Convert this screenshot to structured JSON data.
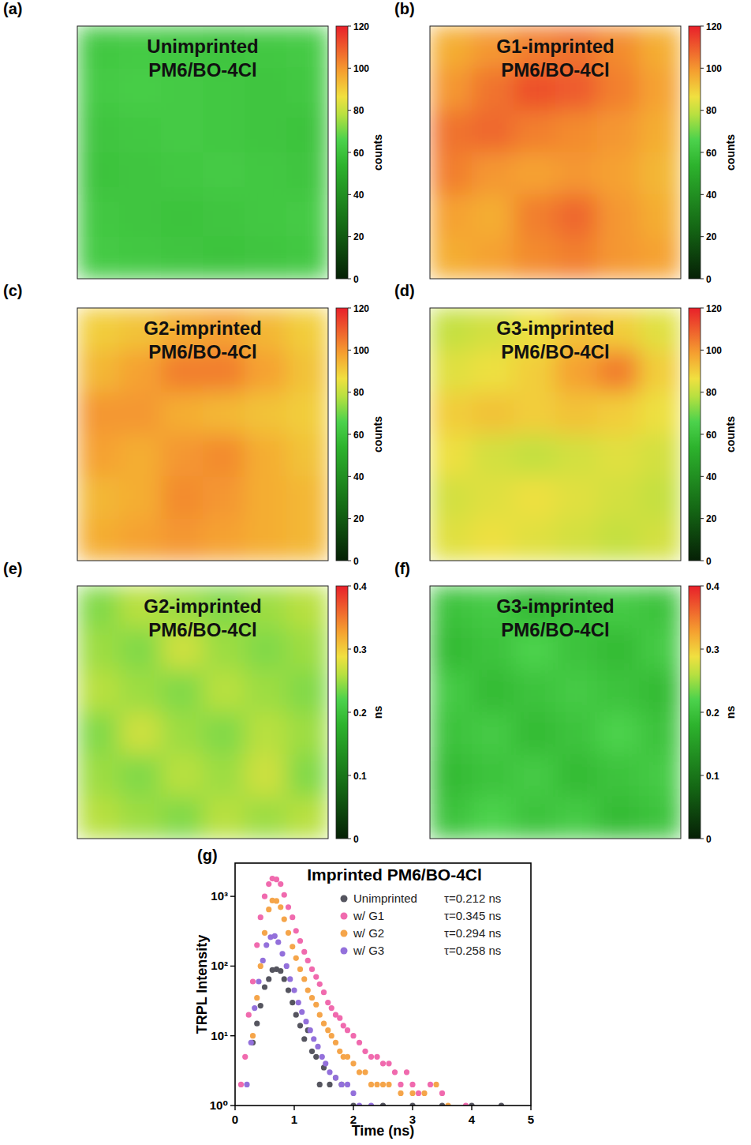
{
  "chart_data": [
    {
      "type": "heatmap",
      "panel": "(a)",
      "title_lines": [
        "Unimprinted",
        "PM6/BO-4Cl"
      ],
      "cells": [
        [
          62,
          63,
          62,
          61,
          62,
          63
        ],
        [
          63,
          64,
          63,
          62,
          61,
          62
        ],
        [
          61,
          62,
          63,
          62,
          61,
          60
        ],
        [
          60,
          61,
          62,
          63,
          62,
          61
        ],
        [
          62,
          61,
          60,
          61,
          62,
          63
        ],
        [
          63,
          62,
          61,
          60,
          61,
          62
        ]
      ],
      "colorbar": {
        "range": [
          0,
          120
        ],
        "ticks": [
          0,
          20,
          40,
          60,
          80,
          100,
          120
        ],
        "label": "counts"
      }
    },
    {
      "type": "heatmap",
      "panel": "(b)",
      "title_lines": [
        "G1-imprinted",
        "PM6/BO-4Cl"
      ],
      "cells": [
        [
          96,
          100,
          104,
          106,
          102,
          96
        ],
        [
          100,
          106,
          112,
          110,
          104,
          98
        ],
        [
          106,
          108,
          104,
          102,
          100,
          96
        ],
        [
          104,
          100,
          98,
          100,
          98,
          94
        ],
        [
          98,
          96,
          104,
          108,
          100,
          96
        ],
        [
          96,
          98,
          102,
          104,
          100,
          98
        ]
      ],
      "colorbar": {
        "range": [
          0,
          120
        ],
        "ticks": [
          0,
          20,
          40,
          60,
          80,
          100,
          120
        ],
        "label": "counts"
      }
    },
    {
      "type": "heatmap",
      "panel": "(c)",
      "title_lines": [
        "G2-imprinted",
        "PM6/BO-4Cl"
      ],
      "cells": [
        [
          90,
          92,
          96,
          98,
          94,
          90
        ],
        [
          94,
          98,
          104,
          104,
          98,
          92
        ],
        [
          100,
          100,
          96,
          94,
          92,
          90
        ],
        [
          98,
          96,
          100,
          102,
          96,
          92
        ],
        [
          94,
          96,
          102,
          100,
          96,
          94
        ],
        [
          96,
          98,
          100,
          98,
          96,
          94
        ]
      ],
      "colorbar": {
        "range": [
          0,
          120
        ],
        "ticks": [
          0,
          20,
          40,
          60,
          80,
          100,
          120
        ],
        "label": "counts"
      }
    },
    {
      "type": "heatmap",
      "panel": "(d)",
      "title_lines": [
        "G3-imprinted",
        "PM6/BO-4Cl"
      ],
      "cells": [
        [
          80,
          82,
          86,
          92,
          90,
          84
        ],
        [
          84,
          86,
          90,
          98,
          104,
          90
        ],
        [
          90,
          92,
          90,
          92,
          90,
          86
        ],
        [
          86,
          82,
          80,
          82,
          84,
          82
        ],
        [
          82,
          84,
          86,
          84,
          82,
          80
        ],
        [
          84,
          86,
          84,
          82,
          80,
          82
        ]
      ],
      "colorbar": {
        "range": [
          0,
          120
        ],
        "ticks": [
          0,
          20,
          40,
          60,
          80,
          100,
          120
        ],
        "label": "counts"
      }
    },
    {
      "type": "heatmap",
      "panel": "(e)",
      "title_lines": [
        "G2-imprinted",
        "PM6/BO-4Cl"
      ],
      "cells": [
        [
          0.24,
          0.26,
          0.25,
          0.24,
          0.25,
          0.26
        ],
        [
          0.25,
          0.24,
          0.27,
          0.25,
          0.24,
          0.25
        ],
        [
          0.26,
          0.25,
          0.24,
          0.26,
          0.25,
          0.24
        ],
        [
          0.24,
          0.27,
          0.25,
          0.24,
          0.26,
          0.25
        ],
        [
          0.25,
          0.24,
          0.26,
          0.25,
          0.27,
          0.24
        ],
        [
          0.26,
          0.25,
          0.24,
          0.26,
          0.25,
          0.26
        ]
      ],
      "colorbar": {
        "range": [
          0,
          0.4
        ],
        "ticks": [
          0,
          0.1,
          0.2,
          0.3,
          0.4
        ],
        "label": "ns"
      }
    },
    {
      "type": "heatmap",
      "panel": "(f)",
      "title_lines": [
        "G3-imprinted",
        "PM6/BO-4Cl"
      ],
      "cells": [
        [
          0.2,
          0.21,
          0.19,
          0.2,
          0.21,
          0.2
        ],
        [
          0.19,
          0.2,
          0.22,
          0.2,
          0.19,
          0.21
        ],
        [
          0.21,
          0.19,
          0.2,
          0.21,
          0.2,
          0.19
        ],
        [
          0.2,
          0.21,
          0.19,
          0.2,
          0.22,
          0.2
        ],
        [
          0.19,
          0.2,
          0.21,
          0.19,
          0.2,
          0.21
        ],
        [
          0.2,
          0.22,
          0.2,
          0.21,
          0.19,
          0.2
        ]
      ],
      "colorbar": {
        "range": [
          0,
          0.4
        ],
        "ticks": [
          0,
          0.1,
          0.2,
          0.3,
          0.4
        ],
        "label": "ns"
      }
    },
    {
      "type": "scatter",
      "panel": "(g)",
      "title": "Imprinted PM6/BO-4Cl",
      "x_label": "Time (ns)",
      "y_label": "TRPL Intensity",
      "xlim": [
        0,
        5
      ],
      "xticks": [
        0,
        1,
        2,
        3,
        4,
        5
      ],
      "ylim": [
        1,
        3000
      ],
      "log": "y",
      "yticks": [
        {
          "value": 1,
          "label": "10⁰"
        },
        {
          "value": 10,
          "label": "10¹"
        },
        {
          "value": 100,
          "label": "10²"
        },
        {
          "value": 1000,
          "label": "10³"
        }
      ],
      "legend": "top-right",
      "series": [
        {
          "name": "Unimprinted",
          "annotation": "τ=0.212 ns",
          "color": "#55555f",
          "marker": "circle",
          "x": [
            0.3,
            0.37,
            0.43,
            0.5,
            0.57,
            0.63,
            0.7,
            0.77,
            0.83,
            0.9,
            0.97,
            1.03,
            1.1,
            1.17,
            1.23,
            1.3,
            1.37,
            1.43,
            1.5,
            1.6,
            1.7,
            1.8,
            2.0,
            2.5,
            3.0,
            3.5,
            4.0,
            4.5
          ],
          "values": [
            8,
            15,
            27,
            50,
            65,
            88,
            90,
            85,
            65,
            45,
            30,
            20,
            14,
            9,
            12,
            6,
            5,
            2,
            3.5,
            2,
            2.5,
            2,
            1,
            1,
            1,
            1,
            1,
            1
          ]
        },
        {
          "name": "w/ G1",
          "annotation": "τ=0.345 ns",
          "color": "#f06aae",
          "marker": "circle",
          "x": [
            0.1,
            0.17,
            0.23,
            0.3,
            0.37,
            0.43,
            0.5,
            0.57,
            0.63,
            0.7,
            0.77,
            0.83,
            0.9,
            0.97,
            1.03,
            1.1,
            1.17,
            1.23,
            1.3,
            1.37,
            1.43,
            1.5,
            1.57,
            1.63,
            1.7,
            1.77,
            1.83,
            1.9,
            2.0,
            2.1,
            2.2,
            2.3,
            2.4,
            2.5,
            2.6,
            2.7,
            2.8,
            2.9,
            3.0,
            3.1,
            3.3,
            3.5,
            3.9
          ],
          "values": [
            2,
            5,
            20,
            60,
            200,
            500,
            1000,
            1500,
            1800,
            1750,
            1500,
            1050,
            700,
            500,
            320,
            230,
            160,
            120,
            90,
            70,
            55,
            42,
            30,
            25,
            20,
            18,
            14,
            12,
            10,
            8,
            6,
            5,
            5,
            4,
            4,
            3,
            2,
            3,
            2,
            1.5,
            2,
            1.5,
            1
          ]
        },
        {
          "name": "w/ G2",
          "annotation": "τ=0.294 ns",
          "color": "#f5a54a",
          "marker": "circle",
          "x": [
            0.3,
            0.37,
            0.43,
            0.5,
            0.57,
            0.63,
            0.7,
            0.77,
            0.83,
            0.9,
            0.97,
            1.03,
            1.1,
            1.17,
            1.23,
            1.3,
            1.37,
            1.43,
            1.5,
            1.57,
            1.63,
            1.7,
            1.77,
            1.83,
            1.9,
            2.0,
            2.1,
            2.2,
            2.3,
            2.4,
            2.5,
            2.6,
            2.8,
            3.0,
            3.2,
            3.4,
            3.6
          ],
          "values": [
            10,
            35,
            100,
            300,
            650,
            870,
            860,
            700,
            470,
            300,
            190,
            130,
            90,
            65,
            45,
            35,
            28,
            20,
            15,
            12,
            10,
            8,
            6,
            5,
            5,
            4,
            3,
            3,
            2,
            2,
            2,
            2,
            1.5,
            1.5,
            1.5,
            2,
            1
          ]
        },
        {
          "name": "w/ G3",
          "annotation": "τ=0.258 ns",
          "color": "#9370db",
          "marker": "circle",
          "x": [
            0.2,
            0.27,
            0.33,
            0.4,
            0.47,
            0.53,
            0.6,
            0.67,
            0.73,
            0.8,
            0.87,
            0.93,
            1.0,
            1.07,
            1.13,
            1.2,
            1.27,
            1.33,
            1.4,
            1.47,
            1.53,
            1.6,
            1.7,
            1.8,
            1.9,
            2.0,
            2.1,
            2.3
          ],
          "values": [
            2,
            8,
            25,
            60,
            120,
            200,
            260,
            270,
            220,
            150,
            100,
            65,
            45,
            30,
            22,
            16,
            12,
            9,
            7,
            5,
            4,
            3,
            2.5,
            2,
            2,
            1.5,
            1,
            1
          ]
        }
      ]
    }
  ]
}
